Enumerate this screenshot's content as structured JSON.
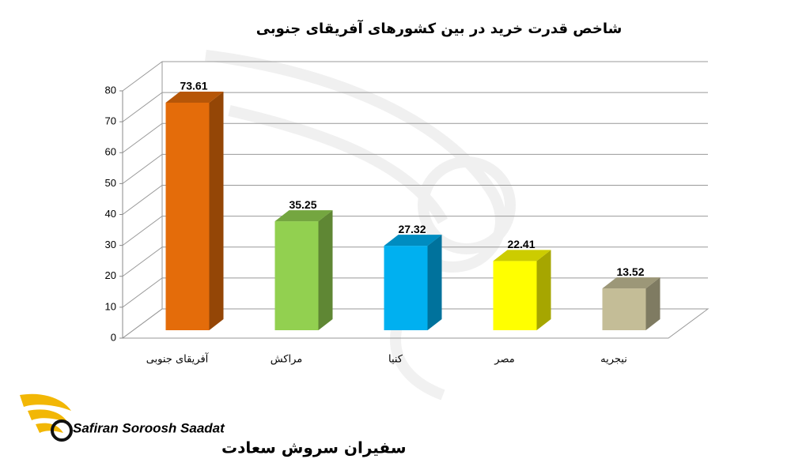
{
  "chart_data": {
    "type": "bar3d",
    "title": "شاخص قدرت خرید در بین کشورهای آفریقای جنوبی",
    "categories": [
      "آفریقای جنوبی",
      "مراکش",
      "کنیا",
      "مصر",
      "نیجریه"
    ],
    "values": [
      73.61,
      35.25,
      27.32,
      22.41,
      13.52
    ],
    "colors": [
      "#e46c0a",
      "#92d050",
      "#00b0f0",
      "#ffff00",
      "#c4bd97"
    ],
    "ylim": [
      0,
      80
    ],
    "yticks": [
      0,
      10,
      20,
      30,
      40,
      50,
      60,
      70,
      80
    ],
    "grid": true
  },
  "logo": {
    "latin": "Safiran Soroosh Saadat",
    "persian": "سفیران سروش سعادت"
  }
}
